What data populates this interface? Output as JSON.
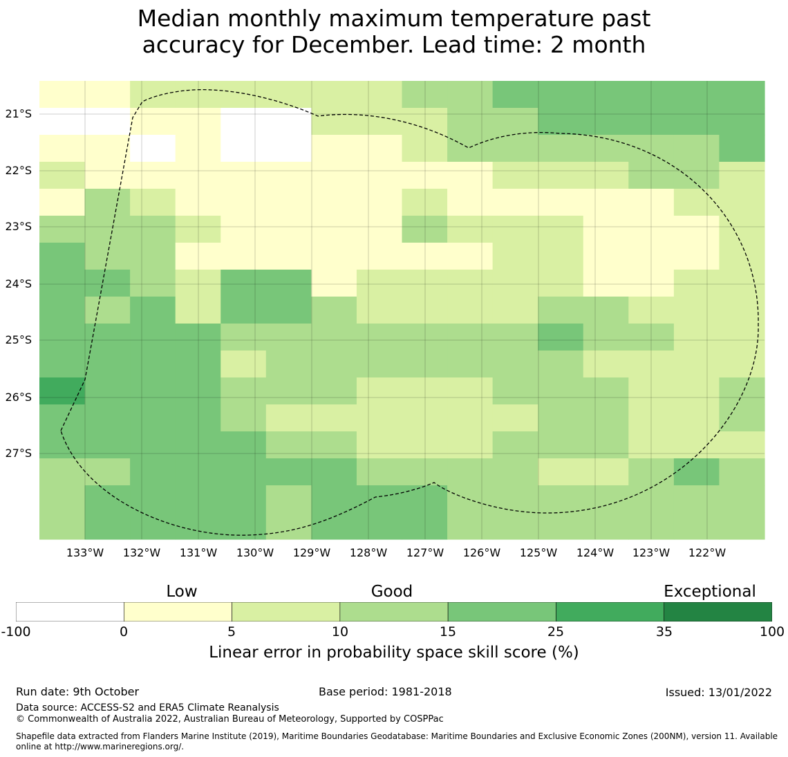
{
  "title": {
    "line1": "Median monthly maximum temperature past",
    "line2": "accuracy for December. Lead time: 2 month"
  },
  "map": {
    "lat_labels": [
      "21°S",
      "22°S",
      "23°S",
      "24°S",
      "25°S",
      "26°S",
      "27°S"
    ],
    "lon_labels": [
      "133°W",
      "132°W",
      "131°W",
      "130°W",
      "129°W",
      "128°W",
      "127°W",
      "126°W",
      "125°W",
      "124°W",
      "123°W",
      "122°W"
    ],
    "color_key": [
      "#ffffff",
      "#ffffcc",
      "#d9f0a3",
      "#addd8e",
      "#78c679",
      "#41ab5d",
      "#238443"
    ],
    "grid_codes": [
      "1122222233444444",
      "0011002223344444",
      "1101001123333334",
      "2111111111222332",
      "1321111121111122",
      "3332111132221112",
      "4331111111221112",
      "4432441222221122",
      "4342443222233222",
      "4444333333343322",
      "4444233333332222",
      "5444333222333223",
      "4444322222233223",
      "4444433222333222",
      "3344444333322343",
      "3444434443333333",
      "3444434443333333"
    ]
  },
  "colorbar": {
    "categories": [
      "Low",
      "Good",
      "Exceptional"
    ],
    "ticks": [
      "-100",
      "0",
      "5",
      "10",
      "15",
      "25",
      "35",
      "100"
    ],
    "colors": [
      "#ffffff",
      "#ffffcc",
      "#d9f0a3",
      "#addd8e",
      "#78c679",
      "#41ab5d",
      "#238443"
    ],
    "label": "Linear error in probability space skill score (%)"
  },
  "footer": {
    "run_date": "Run date: 9th October",
    "base_period": "Base period: 1981-2018",
    "issued": "Issued: 13/01/2022",
    "data_source": "Data source: ACCESS-S2 and ERA5 Climate Reanalysis",
    "copyright": "© Commonwealth of Australia 2022, Australian Bureau of Meteorology, Supported by COSPPac",
    "shapefile": "Shapefile data extracted from Flanders Marine Institute (2019), Maritime Boundaries Geodatabase: Maritime Boundaries and Exclusive Economic Zones (200NM), version 11. Available online at http://www.marineregions.org/."
  }
}
